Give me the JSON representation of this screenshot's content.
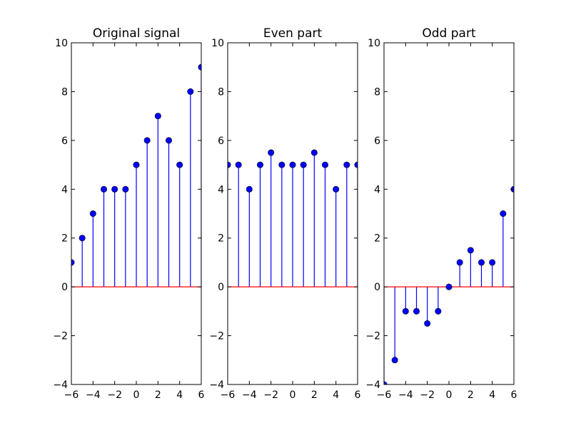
{
  "chart_data": [
    {
      "type": "stem",
      "title": "Original signal",
      "x": [
        -6,
        -5,
        -4,
        -3,
        -2,
        -1,
        0,
        1,
        2,
        3,
        4,
        5,
        6
      ],
      "y": [
        1,
        2,
        3,
        4,
        4,
        4,
        5,
        6,
        7,
        6,
        5,
        8,
        9
      ],
      "xlim": [
        -6,
        6
      ],
      "ylim": [
        -4,
        10
      ],
      "xticks": [
        -6,
        -4,
        -2,
        0,
        2,
        4,
        6
      ],
      "yticks": [
        -4,
        -2,
        0,
        2,
        4,
        6,
        8,
        10
      ],
      "grid": false
    },
    {
      "type": "stem",
      "title": "Even part",
      "x": [
        -6,
        -5,
        -4,
        -3,
        -2,
        -1,
        0,
        1,
        2,
        3,
        4,
        5,
        6
      ],
      "y": [
        5,
        5,
        4,
        5,
        5.5,
        5,
        5,
        5,
        5.5,
        5,
        4,
        5,
        5
      ],
      "xlim": [
        -6,
        6
      ],
      "ylim": [
        -4,
        10
      ],
      "xticks": [
        -6,
        -4,
        -2,
        0,
        2,
        4,
        6
      ],
      "yticks": [
        -4,
        -2,
        0,
        2,
        4,
        6,
        8,
        10
      ],
      "grid": false
    },
    {
      "type": "stem",
      "title": "Odd part",
      "x": [
        -6,
        -5,
        -4,
        -3,
        -2,
        -1,
        0,
        1,
        2,
        3,
        4,
        5,
        6
      ],
      "y": [
        -4,
        -3,
        -1,
        -1,
        -1.5,
        -1,
        0,
        1,
        1.5,
        1,
        1,
        3,
        4
      ],
      "xlim": [
        -6,
        6
      ],
      "ylim": [
        -4,
        10
      ],
      "xticks": [
        -6,
        -4,
        -2,
        0,
        2,
        4,
        6
      ],
      "yticks": [
        -4,
        -2,
        0,
        2,
        4,
        6,
        8,
        10
      ],
      "grid": false
    }
  ],
  "colors": {
    "marker": "#0000ff",
    "stem": "#0000ff",
    "baseline": "#ff0000",
    "axes": "#000000"
  }
}
